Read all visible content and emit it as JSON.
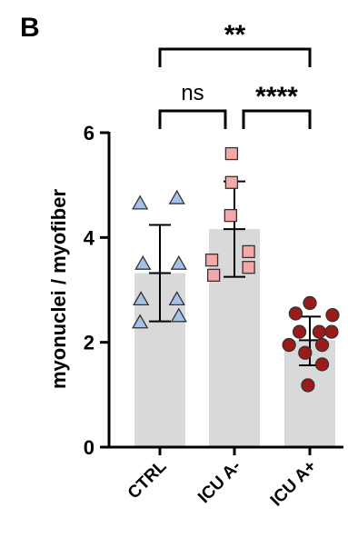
{
  "panel_label": "B",
  "chart_data": {
    "type": "bar",
    "categories": [
      "CTRL",
      "ICU A-",
      "ICU A+"
    ],
    "ylabel": "myonuclei / myofiber",
    "xlabel": "",
    "ylim": [
      0,
      6
    ],
    "yticks": [
      0,
      2,
      4,
      6
    ],
    "bar_color": "#d9d9d9",
    "series": [
      {
        "category": "CTRL",
        "mean": 3.32,
        "sd_low": 2.4,
        "sd_high": 4.24,
        "marker": "triangle",
        "color": "#a4c2e8",
        "points": [
          {
            "offset": -0.42,
            "y": 4.65
          },
          {
            "offset": 0.36,
            "y": 4.75
          },
          {
            "offset": -0.36,
            "y": 3.5
          },
          {
            "offset": 0.4,
            "y": 3.5
          },
          {
            "offset": -0.4,
            "y": 2.82
          },
          {
            "offset": 0.36,
            "y": 2.82
          },
          {
            "offset": -0.42,
            "y": 2.38
          },
          {
            "offset": 0.4,
            "y": 2.5
          }
        ]
      },
      {
        "category": "ICU A-",
        "mean": 4.16,
        "sd_low": 3.25,
        "sd_high": 5.07,
        "marker": "square",
        "color": "#f4a8a8",
        "points": [
          {
            "offset": -0.06,
            "y": 5.6
          },
          {
            "offset": -0.06,
            "y": 5.05
          },
          {
            "offset": -0.08,
            "y": 4.42
          },
          {
            "offset": 0.3,
            "y": 3.73
          },
          {
            "offset": -0.48,
            "y": 3.57
          },
          {
            "offset": 0.3,
            "y": 3.43
          },
          {
            "offset": -0.44,
            "y": 3.28
          }
        ]
      },
      {
        "category": "ICU A+",
        "mean": 2.04,
        "sd_low": 1.56,
        "sd_high": 2.49,
        "marker": "circle",
        "color": "#9c1a1a",
        "points": [
          {
            "offset": 0.0,
            "y": 2.75
          },
          {
            "offset": -0.3,
            "y": 2.55
          },
          {
            "offset": 0.48,
            "y": 2.52
          },
          {
            "offset": -0.22,
            "y": 2.2
          },
          {
            "offset": 0.2,
            "y": 2.2
          },
          {
            "offset": 0.46,
            "y": 2.2
          },
          {
            "offset": -0.44,
            "y": 1.95
          },
          {
            "offset": 0.26,
            "y": 1.95
          },
          {
            "offset": -0.1,
            "y": 1.8
          },
          {
            "offset": 0.26,
            "y": 1.58
          },
          {
            "offset": -0.04,
            "y": 1.18
          }
        ]
      }
    ],
    "significance": [
      {
        "label": "ns",
        "from": 0,
        "to": 1,
        "level": 1
      },
      {
        "label": "****",
        "from": 1,
        "to": 2,
        "level": 1
      },
      {
        "label": "**",
        "from": 0,
        "to": 2,
        "level": 2
      }
    ]
  }
}
